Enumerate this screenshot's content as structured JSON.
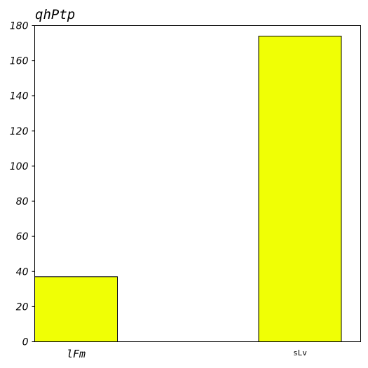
{
  "chart_data": {
    "type": "bar",
    "title": "qhPtp",
    "xlabel": "",
    "ylabel": "",
    "categories": [
      "lFm",
      "sLv"
    ],
    "values": [
      37,
      174
    ],
    "ylim": [
      0,
      180
    ],
    "yticks": [
      "0",
      "20",
      "40",
      "60",
      "80",
      "100",
      "120",
      "140",
      "160",
      "180"
    ],
    "grid": false,
    "legend": "none",
    "bar_color": "#f0ff05",
    "bar_edge_color": "#000000"
  }
}
